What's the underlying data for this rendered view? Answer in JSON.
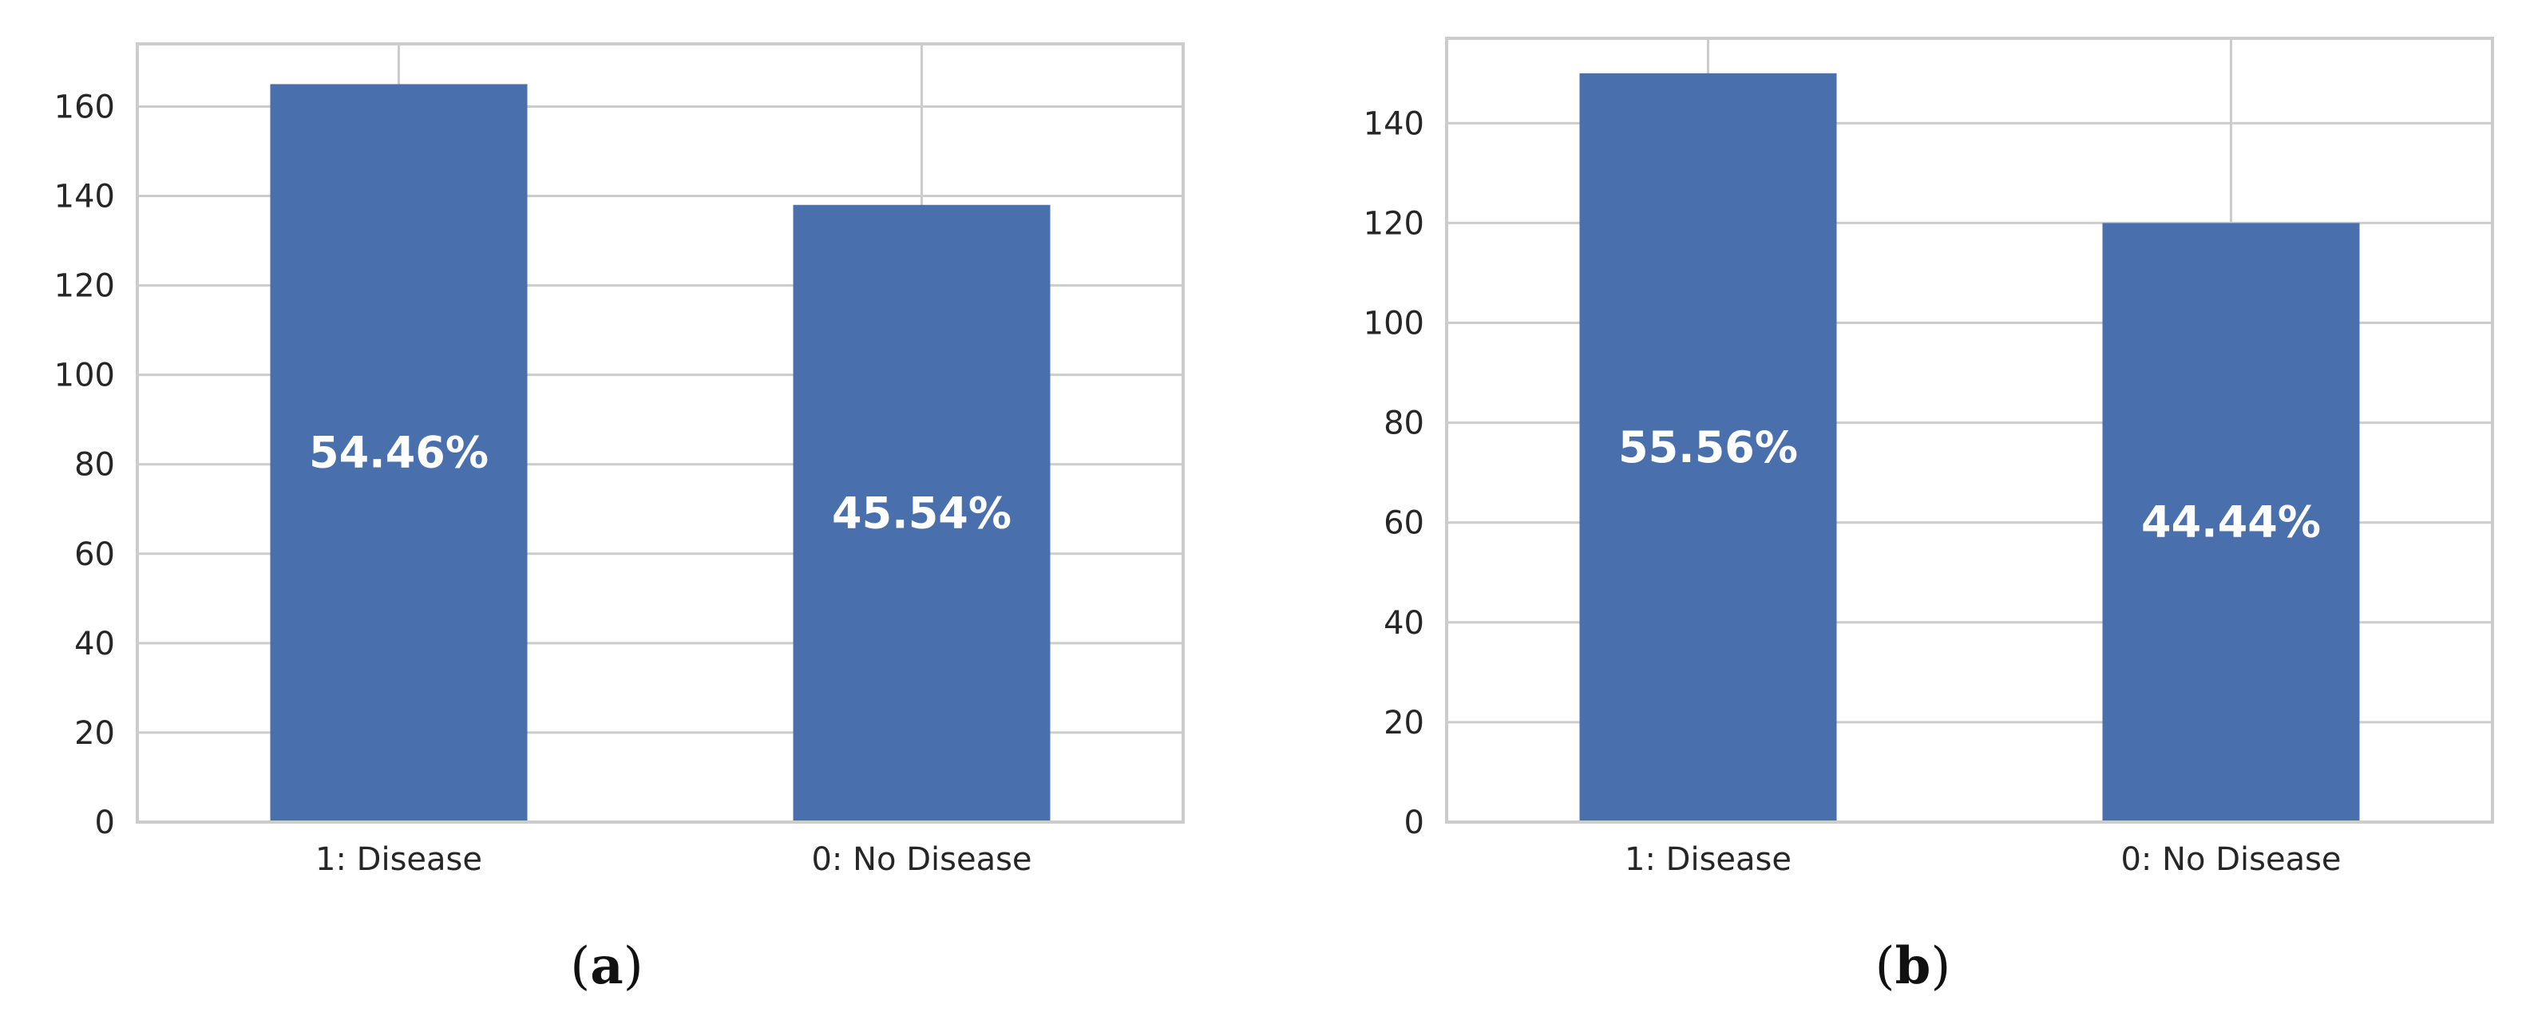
{
  "chart_data": [
    {
      "type": "bar",
      "panel_label": "a",
      "categories": [
        "1: Disease",
        "0: No Disease"
      ],
      "values": [
        165,
        138
      ],
      "data_labels": [
        "54.46%",
        "45.54%"
      ],
      "ylim": [
        0,
        174
      ],
      "yticks": [
        0,
        20,
        40,
        60,
        80,
        100,
        120,
        140,
        160
      ],
      "grid": true,
      "bar_color": "#4a6fad",
      "title": "",
      "xlabel": "",
      "ylabel": ""
    },
    {
      "type": "bar",
      "panel_label": "b",
      "categories": [
        "1: Disease",
        "0: No Disease"
      ],
      "values": [
        150,
        120
      ],
      "data_labels": [
        "55.56%",
        "44.44%"
      ],
      "ylim": [
        0,
        157
      ],
      "yticks": [
        0,
        20,
        40,
        60,
        80,
        100,
        120,
        140
      ],
      "grid": true,
      "bar_color": "#4a6fad",
      "title": "",
      "xlabel": "",
      "ylabel": ""
    }
  ],
  "style": {
    "grid_color": "#cccccc",
    "frame_color": "#cccccc",
    "label_color": "#ffffff"
  }
}
